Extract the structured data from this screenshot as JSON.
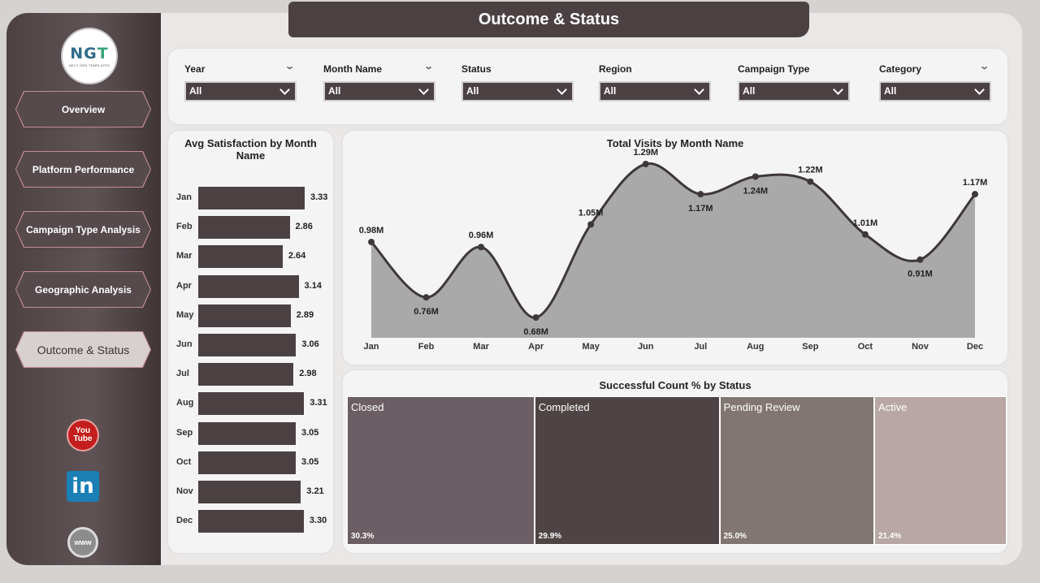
{
  "header": {
    "title": "Outcome & Status"
  },
  "logo": {
    "mark_left": "NG",
    "mark_right": "T",
    "tagline": "NEXT GEN TEMPLATES"
  },
  "sidebar": {
    "items": [
      {
        "label": "Overview"
      },
      {
        "label": "Platform Performance"
      },
      {
        "label": "Campaign Type Analysis"
      },
      {
        "label": "Geographic Analysis"
      },
      {
        "label": "Outcome & Status",
        "active": true
      }
    ],
    "social": {
      "youtube_top": "You",
      "youtube_bottom": "Tube",
      "linkedin": "in",
      "web": "www"
    }
  },
  "filters": [
    {
      "label": "Year",
      "value": "All"
    },
    {
      "label": "Month Name",
      "value": "All"
    },
    {
      "label": "Status",
      "value": "All"
    },
    {
      "label": "Region",
      "value": "All"
    },
    {
      "label": "Campaign Type",
      "value": "All"
    },
    {
      "label": "Category",
      "value": "All"
    }
  ],
  "colors": {
    "dark": "#4b4143",
    "area": "#a9a9a9",
    "tile_closed": "#6b5e64",
    "tile_completed": "#4f4445",
    "tile_pending": "#817672",
    "tile_active": "#b8a7a4"
  },
  "chart_data": [
    {
      "type": "bar",
      "title": "Avg Satisfaction by Month Name",
      "categories": [
        "Jan",
        "Feb",
        "Mar",
        "Apr",
        "May",
        "Jun",
        "Jul",
        "Aug",
        "Sep",
        "Oct",
        "Nov",
        "Dec"
      ],
      "values": [
        3.33,
        2.86,
        2.64,
        3.14,
        2.89,
        3.06,
        2.98,
        3.31,
        3.05,
        3.05,
        3.21,
        3.3
      ],
      "labels": [
        "3.33",
        "2.86",
        "2.64",
        "3.14",
        "2.89",
        "3.06",
        "2.98",
        "3.31",
        "3.05",
        "3.05",
        "3.21",
        "3.30"
      ]
    },
    {
      "type": "area",
      "title": "Total Visits by Month Name",
      "categories": [
        "Jan",
        "Feb",
        "Mar",
        "Apr",
        "May",
        "Jun",
        "Jul",
        "Aug",
        "Sep",
        "Oct",
        "Nov",
        "Dec"
      ],
      "values": [
        0.98,
        0.76,
        0.96,
        0.68,
        1.05,
        1.29,
        1.17,
        1.24,
        1.22,
        1.01,
        0.91,
        1.17
      ],
      "labels": [
        "0.98M",
        "0.76M",
        "0.96M",
        "0.68M",
        "1.05M",
        "1.29M",
        "1.17M",
        "1.24M",
        "1.22M",
        "1.01M",
        "0.91M",
        "1.17M"
      ]
    },
    {
      "type": "treemap",
      "title": "Successful Count % by Status",
      "categories": [
        "Closed",
        "Completed",
        "Pending Review",
        "Active"
      ],
      "values": [
        30.3,
        29.9,
        25.0,
        21.4
      ],
      "labels": [
        "30.3%",
        "29.9%",
        "25.0%",
        "21.4%"
      ]
    }
  ]
}
